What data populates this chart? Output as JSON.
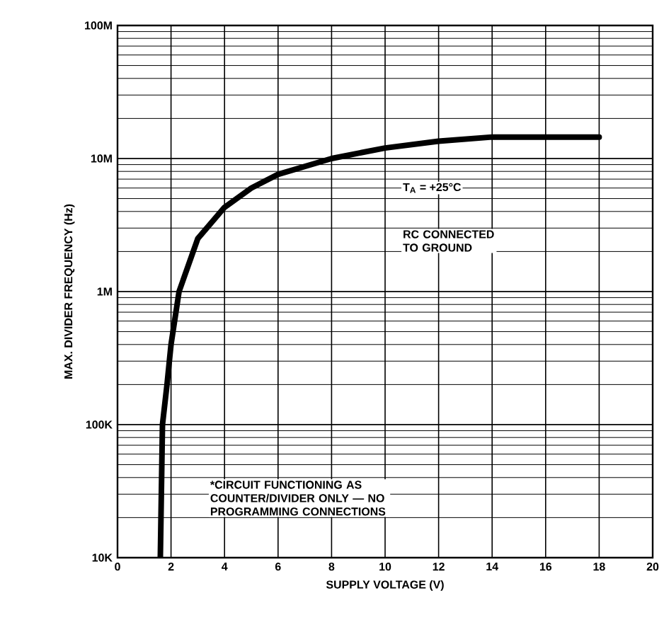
{
  "chart_data": {
    "type": "line",
    "xlabel": "SUPPLY VOLTAGE (V)",
    "ylabel": "MAX. DIVIDER FREQUENCY (Hz)",
    "x": [
      1.6,
      1.68,
      1.85,
      2.0,
      2.3,
      3.0,
      4.0,
      5.0,
      6.0,
      8.0,
      10.0,
      12.0,
      14.0,
      16.0,
      18.0
    ],
    "series": [
      {
        "color": "#000000",
        "values": [
          10000,
          100000,
          200000,
          400000,
          1000000,
          2500000,
          4300000,
          6000000,
          7600000,
          10000000,
          12000000,
          13500000,
          14500000,
          14500000,
          14500000
        ]
      }
    ],
    "log": "y",
    "grid": true,
    "marker": "none",
    "line_style": "solid",
    "xlim": [
      0,
      20
    ],
    "xticks": [
      0,
      2,
      4,
      6,
      8,
      10,
      12,
      14,
      16,
      18,
      20
    ],
    "ylim": [
      10000,
      100000000
    ],
    "yticks": [
      {
        "value": 10000,
        "label": "10K"
      },
      {
        "value": 100000,
        "label": "100K"
      },
      {
        "value": 1000000,
        "label": "1M"
      },
      {
        "value": 10000000,
        "label": "10M"
      },
      {
        "value": 100000000,
        "label": "100M"
      }
    ],
    "annotations": [
      "T$_{A}$ = +25°C",
      "RC CONNECTED TO GROUND",
      "*CIRCUIT FUNCTIONING AS COUNTER/DIVIDER ONLY — NO PROGRAMMING CONNECTIONS"
    ]
  }
}
